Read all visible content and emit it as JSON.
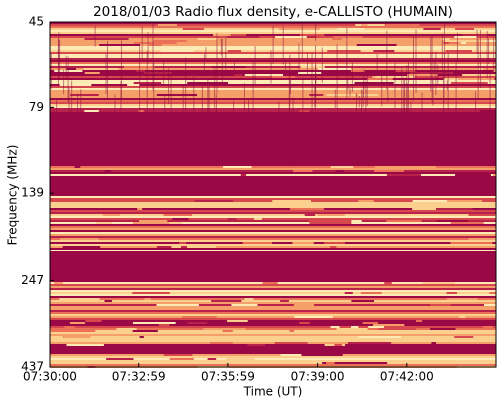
{
  "chart_data": {
    "type": "spectrogram",
    "title": "2018/01/03  Radio flux density, e-CALLISTO (HUMAIN)",
    "xlabel": "Time (UT)",
    "ylabel": "Frequency (MHz)",
    "xlim": [
      "07:30:00",
      "07:45:00"
    ],
    "xticks": [
      "07:30:00",
      "07:32:59",
      "07:35:59",
      "07:39:00",
      "07:42:00"
    ],
    "ylim": [
      45,
      437
    ],
    "yticks": [
      45,
      79,
      139,
      247,
      437
    ],
    "ylog": true,
    "yinverted": true
  }
}
